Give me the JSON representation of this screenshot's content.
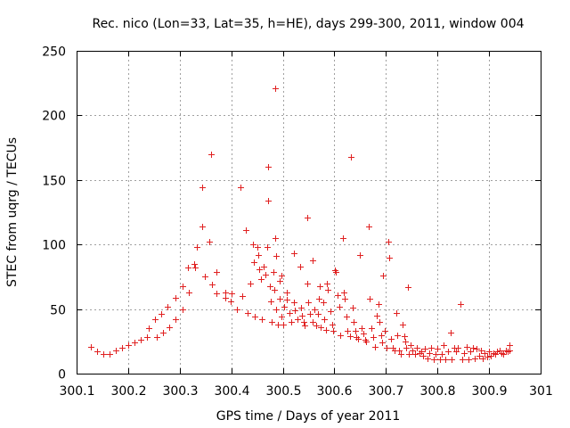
{
  "chart_data": {
    "type": "scatter",
    "title": "Rec. nico (Lon=33, Lat=35, h=HE), days 299-300, 2011, window 004",
    "xlabel": "GPS time / Days of year 2011",
    "ylabel": "STEC from uqrg / TECUs",
    "xlim": [
      300.1,
      301.0
    ],
    "ylim": [
      0,
      250
    ],
    "xticks": [
      300.1,
      300.2,
      300.3,
      300.4,
      300.5,
      300.6,
      300.7,
      300.8,
      300.9,
      301.0
    ],
    "xtick_labels": [
      "300.1",
      "300.2",
      "300.3",
      "300.4",
      "300.5",
      "300.6",
      "300.7",
      "300.8",
      "300.9",
      "301"
    ],
    "yticks": [
      0,
      50,
      100,
      150,
      200,
      250
    ],
    "ytick_labels": [
      "0",
      "50",
      "100",
      "150",
      "200",
      "250"
    ],
    "grid": true,
    "marker": "+",
    "color": "#e02020",
    "series": [
      {
        "name": "STEC",
        "points": [
          [
            300.128,
            21
          ],
          [
            300.14,
            17
          ],
          [
            300.152,
            15
          ],
          [
            300.164,
            15
          ],
          [
            300.176,
            18
          ],
          [
            300.188,
            20
          ],
          [
            300.2,
            22
          ],
          [
            300.212,
            24
          ],
          [
            300.224,
            26
          ],
          [
            300.236,
            28
          ],
          [
            300.24,
            35
          ],
          [
            300.252,
            42
          ],
          [
            300.256,
            28
          ],
          [
            300.264,
            46
          ],
          [
            300.268,
            32
          ],
          [
            300.276,
            52
          ],
          [
            300.28,
            36
          ],
          [
            300.292,
            59
          ],
          [
            300.292,
            42
          ],
          [
            300.305,
            68
          ],
          [
            300.305,
            50
          ],
          [
            300.316,
            82
          ],
          [
            300.318,
            63
          ],
          [
            300.328,
            85
          ],
          [
            300.33,
            82
          ],
          [
            300.333,
            98
          ],
          [
            300.343,
            114
          ],
          [
            300.344,
            144
          ],
          [
            300.348,
            75
          ],
          [
            300.358,
            102
          ],
          [
            300.36,
            170
          ],
          [
            300.362,
            69
          ],
          [
            300.372,
            79
          ],
          [
            300.372,
            62
          ],
          [
            300.388,
            63
          ],
          [
            300.388,
            59
          ],
          [
            300.399,
            56
          ],
          [
            300.401,
            62
          ],
          [
            300.411,
            50
          ],
          [
            300.417,
            144
          ],
          [
            300.421,
            60
          ],
          [
            300.428,
            111
          ],
          [
            300.432,
            47
          ],
          [
            300.436,
            70
          ],
          [
            300.442,
            100
          ],
          [
            300.444,
            86
          ],
          [
            300.446,
            44
          ],
          [
            300.451,
            98
          ],
          [
            300.453,
            92
          ],
          [
            300.454,
            81
          ],
          [
            300.458,
            73
          ],
          [
            300.46,
            42
          ],
          [
            300.463,
            83
          ],
          [
            300.467,
            77
          ],
          [
            300.469,
            98
          ],
          [
            300.471,
            160
          ],
          [
            300.471,
            134
          ],
          [
            300.474,
            68
          ],
          [
            300.476,
            56
          ],
          [
            300.478,
            40
          ],
          [
            300.481,
            79
          ],
          [
            300.484,
            65
          ],
          [
            300.485,
            221
          ],
          [
            300.485,
            105
          ],
          [
            300.487,
            91
          ],
          [
            300.487,
            50
          ],
          [
            300.49,
            38
          ],
          [
            300.494,
            72
          ],
          [
            300.494,
            58
          ],
          [
            300.497,
            76
          ],
          [
            300.497,
            44
          ],
          [
            300.5,
            38
          ],
          [
            300.503,
            52
          ],
          [
            300.507,
            63
          ],
          [
            300.508,
            57
          ],
          [
            300.512,
            47
          ],
          [
            300.516,
            40
          ],
          [
            300.521,
            93
          ],
          [
            300.521,
            55
          ],
          [
            300.524,
            49
          ],
          [
            300.528,
            42
          ],
          [
            300.533,
            83
          ],
          [
            300.536,
            51
          ],
          [
            300.537,
            45
          ],
          [
            300.541,
            40
          ],
          [
            300.543,
            37
          ],
          [
            300.547,
            121
          ],
          [
            300.547,
            70
          ],
          [
            300.549,
            55
          ],
          [
            300.553,
            46
          ],
          [
            300.557,
            88
          ],
          [
            300.558,
            40
          ],
          [
            300.562,
            50
          ],
          [
            300.565,
            37
          ],
          [
            300.568,
            46
          ],
          [
            300.57,
            58
          ],
          [
            300.572,
            68
          ],
          [
            300.573,
            36
          ],
          [
            300.578,
            55
          ],
          [
            300.58,
            42
          ],
          [
            300.583,
            34
          ],
          [
            300.586,
            70
          ],
          [
            300.588,
            65
          ],
          [
            300.592,
            48
          ],
          [
            300.595,
            38
          ],
          [
            300.598,
            33
          ],
          [
            300.601,
            80
          ],
          [
            300.603,
            79
          ],
          [
            300.606,
            61
          ],
          [
            300.609,
            52
          ],
          [
            300.612,
            30
          ],
          [
            300.616,
            105
          ],
          [
            300.618,
            63
          ],
          [
            300.62,
            58
          ],
          [
            300.623,
            44
          ],
          [
            300.626,
            33
          ],
          [
            300.63,
            29
          ],
          [
            300.632,
            168
          ],
          [
            300.635,
            51
          ],
          [
            300.638,
            40
          ],
          [
            300.64,
            33
          ],
          [
            300.643,
            28
          ],
          [
            300.646,
            27
          ],
          [
            300.65,
            92
          ],
          [
            300.653,
            35
          ],
          [
            300.656,
            31
          ],
          [
            300.659,
            26
          ],
          [
            300.662,
            25
          ],
          [
            300.666,
            114
          ],
          [
            300.669,
            58
          ],
          [
            300.672,
            35
          ],
          [
            300.675,
            28
          ],
          [
            300.678,
            21
          ],
          [
            300.682,
            45
          ],
          [
            300.685,
            54
          ],
          [
            300.688,
            40
          ],
          [
            300.69,
            30
          ],
          [
            300.692,
            24
          ],
          [
            300.695,
            76
          ],
          [
            300.698,
            33
          ],
          [
            300.701,
            20
          ],
          [
            300.705,
            102
          ],
          [
            300.707,
            90
          ],
          [
            300.71,
            27
          ],
          [
            300.713,
            20
          ],
          [
            300.716,
            18
          ],
          [
            300.72,
            47
          ],
          [
            300.722,
            30
          ],
          [
            300.726,
            18
          ],
          [
            300.729,
            15
          ],
          [
            300.733,
            38
          ],
          [
            300.735,
            29
          ],
          [
            300.738,
            25
          ],
          [
            300.74,
            20
          ],
          [
            300.742,
            67
          ],
          [
            300.745,
            15
          ],
          [
            300.748,
            22
          ],
          [
            300.752,
            18
          ],
          [
            300.756,
            15
          ],
          [
            300.76,
            20
          ],
          [
            300.765,
            16
          ],
          [
            300.768,
            17
          ],
          [
            300.772,
            14
          ],
          [
            300.776,
            19
          ],
          [
            300.78,
            12
          ],
          [
            300.784,
            16
          ],
          [
            300.788,
            20
          ],
          [
            300.792,
            11
          ],
          [
            300.796,
            15
          ],
          [
            300.8,
            19
          ],
          [
            300.804,
            11
          ],
          [
            300.808,
            15
          ],
          [
            300.812,
            22
          ],
          [
            300.816,
            11
          ],
          [
            300.82,
            17
          ],
          [
            300.825,
            32
          ],
          [
            300.828,
            11
          ],
          [
            300.832,
            20
          ],
          [
            300.836,
            17
          ],
          [
            300.84,
            20
          ],
          [
            300.844,
            54
          ],
          [
            300.848,
            11
          ],
          [
            300.852,
            16
          ],
          [
            300.856,
            21
          ],
          [
            300.86,
            11
          ],
          [
            300.864,
            17
          ],
          [
            300.868,
            20
          ],
          [
            300.872,
            12
          ],
          [
            300.876,
            19
          ],
          [
            300.88,
            14
          ],
          [
            300.884,
            18
          ],
          [
            300.888,
            12
          ],
          [
            300.892,
            16
          ],
          [
            300.896,
            13
          ],
          [
            300.9,
            17
          ],
          [
            300.904,
            14
          ],
          [
            300.908,
            16
          ],
          [
            300.912,
            15
          ],
          [
            300.916,
            17
          ],
          [
            300.92,
            18
          ],
          [
            300.924,
            16
          ],
          [
            300.928,
            15
          ],
          [
            300.932,
            18
          ],
          [
            300.936,
            17
          ],
          [
            300.94,
            22
          ],
          [
            300.94,
            18
          ]
        ]
      }
    ]
  }
}
